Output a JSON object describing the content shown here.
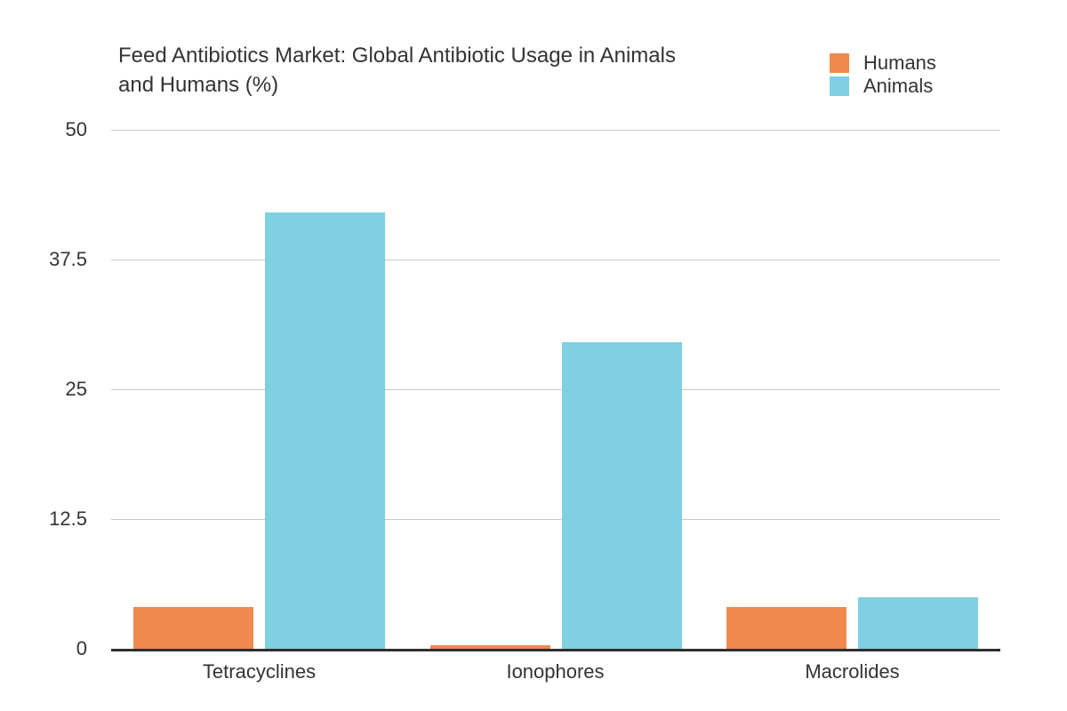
{
  "chart_data": {
    "type": "bar",
    "title": "Feed Antibiotics Market: Global Antibiotic Usage in Animals and Humans (%)",
    "categories": [
      "Tetracyclines",
      "Ionophores",
      "Macrolides"
    ],
    "series": [
      {
        "name": "Humans",
        "color": "#F0894F",
        "values": [
          4,
          0.3,
          4
        ]
      },
      {
        "name": "Animals",
        "color": "#7FD0E0",
        "values": [
          42,
          29.5,
          5
        ]
      }
    ],
    "y_ticks": [
      0,
      12.5,
      25,
      37.5,
      50
    ],
    "y_tick_labels": [
      "0",
      "12.5",
      "25",
      "37.5",
      "50"
    ],
    "ylim": [
      0,
      50
    ],
    "xlabel": "",
    "ylabel": "",
    "grid": true,
    "legend_position": "top-right",
    "colors": {
      "grid": "#C9C9C9",
      "axis": "#2E2E2E",
      "text": "#333333",
      "background": "#FFFFFF"
    }
  }
}
